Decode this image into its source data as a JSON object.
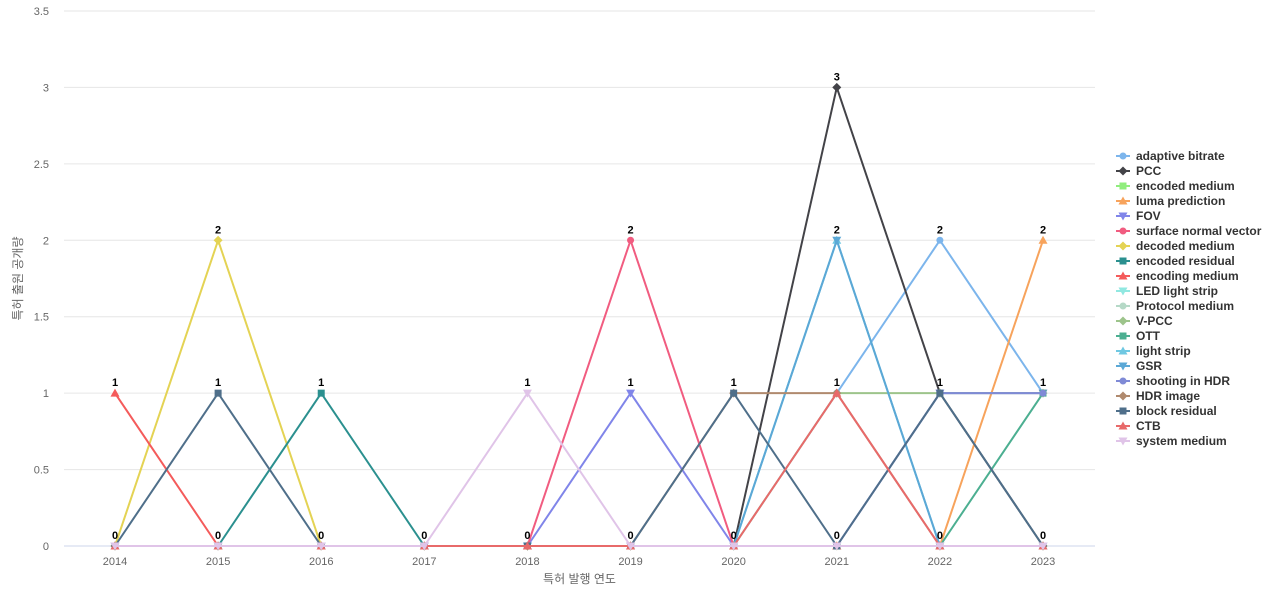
{
  "chart_data": {
    "type": "line",
    "title": "",
    "xlabel": "특허 발행 연도",
    "ylabel": "특허 출원 공개량",
    "x": [
      "2014",
      "2015",
      "2016",
      "2017",
      "2018",
      "2019",
      "2020",
      "2021",
      "2022",
      "2023"
    ],
    "ylim": [
      0,
      3.5
    ],
    "yticks": [
      "0",
      "0.5",
      "1",
      "1.5",
      "2",
      "2.5",
      "3",
      "3.5"
    ],
    "grid": true,
    "legend_position": "right",
    "series": [
      {
        "name": "adaptive bitrate",
        "color": "#7cb5ec",
        "marker": "circle",
        "values": [
          0,
          0,
          0,
          0,
          0,
          0,
          0,
          1,
          2,
          1
        ]
      },
      {
        "name": "PCC",
        "color": "#434348",
        "marker": "diamond",
        "values": [
          0,
          0,
          0,
          0,
          0,
          0,
          0,
          3,
          1,
          0
        ]
      },
      {
        "name": "encoded medium",
        "color": "#90ed7d",
        "marker": "square",
        "values": [
          0,
          0,
          0,
          0,
          0,
          0,
          0,
          0,
          0,
          0
        ]
      },
      {
        "name": "luma prediction",
        "color": "#f7a35c",
        "marker": "triangle",
        "values": [
          0,
          0,
          0,
          0,
          0,
          0,
          0,
          0,
          0,
          2
        ]
      },
      {
        "name": "FOV",
        "color": "#8085e9",
        "marker": "triangle-down",
        "values": [
          0,
          0,
          0,
          0,
          0,
          1,
          0,
          0,
          1,
          1
        ]
      },
      {
        "name": "surface normal vector",
        "color": "#f15c80",
        "marker": "circle",
        "values": [
          0,
          0,
          0,
          0,
          0,
          2,
          0,
          0,
          0,
          0
        ]
      },
      {
        "name": "decoded medium",
        "color": "#e4d354",
        "marker": "diamond",
        "values": [
          0,
          2,
          0,
          0,
          0,
          0,
          0,
          0,
          0,
          0
        ]
      },
      {
        "name": "encoded residual",
        "color": "#2b908f",
        "marker": "square",
        "values": [
          0,
          0,
          1,
          0,
          0,
          0,
          0,
          0,
          0,
          0
        ]
      },
      {
        "name": "encoding medium",
        "color": "#f45b5b",
        "marker": "triangle",
        "values": [
          1,
          0,
          0,
          0,
          0,
          0,
          0,
          0,
          0,
          0
        ]
      },
      {
        "name": "LED light strip",
        "color": "#91e8e1",
        "marker": "triangle-down",
        "values": [
          0,
          0,
          0,
          0,
          0,
          0,
          0,
          0,
          0,
          0
        ]
      },
      {
        "name": "Protocol medium",
        "color": "#b5d9c7",
        "marker": "circle",
        "values": [
          0,
          0,
          0,
          0,
          0,
          0,
          0,
          0,
          0,
          0
        ]
      },
      {
        "name": "V-PCC",
        "color": "#9dc48b",
        "marker": "diamond",
        "values": [
          0,
          0,
          0,
          0,
          0,
          0,
          0,
          1,
          1,
          1
        ]
      },
      {
        "name": "OTT",
        "color": "#4caf91",
        "marker": "square",
        "values": [
          0,
          0,
          0,
          0,
          0,
          0,
          0,
          0,
          0,
          1
        ]
      },
      {
        "name": "light strip",
        "color": "#6fc8e2",
        "marker": "triangle",
        "values": [
          0,
          0,
          0,
          0,
          0,
          0,
          0,
          2,
          0,
          0
        ]
      },
      {
        "name": "GSR",
        "color": "#5ba8d6",
        "marker": "triangle-down",
        "values": [
          0,
          0,
          0,
          0,
          0,
          0,
          0,
          2,
          0,
          0
        ]
      },
      {
        "name": "shooting in HDR",
        "color": "#7f8ad6",
        "marker": "circle",
        "values": [
          0,
          0,
          0,
          0,
          0,
          0,
          0,
          0,
          1,
          1
        ]
      },
      {
        "name": "HDR image",
        "color": "#b08a6e",
        "marker": "diamond",
        "values": [
          0,
          0,
          0,
          0,
          0,
          0,
          1,
          1,
          0,
          0
        ]
      },
      {
        "name": "block residual",
        "color": "#4f6f8a",
        "marker": "square",
        "values": [
          0,
          1,
          0,
          0,
          0,
          0,
          1,
          0,
          1,
          0
        ]
      },
      {
        "name": "CTB",
        "color": "#e86a6a",
        "marker": "triangle",
        "values": [
          0,
          0,
          0,
          0,
          0,
          0,
          0,
          1,
          0,
          0
        ]
      },
      {
        "name": "system medium",
        "color": "#e0c4e8",
        "marker": "triangle-down",
        "values": [
          0,
          0,
          0,
          0,
          1,
          0,
          0,
          0,
          0,
          0
        ]
      }
    ],
    "data_labels": [
      {
        "x": "2014",
        "value": 1
      },
      {
        "x": "2014",
        "value": 0
      },
      {
        "x": "2015",
        "value": 2
      },
      {
        "x": "2015",
        "value": 1
      },
      {
        "x": "2015",
        "value": 0
      },
      {
        "x": "2016",
        "value": 1
      },
      {
        "x": "2016",
        "value": 0
      },
      {
        "x": "2017",
        "value": 0
      },
      {
        "x": "2018",
        "value": 1
      },
      {
        "x": "2018",
        "value": 0
      },
      {
        "x": "2019",
        "value": 2
      },
      {
        "x": "2019",
        "value": 1
      },
      {
        "x": "2019",
        "value": 0
      },
      {
        "x": "2020",
        "value": 1
      },
      {
        "x": "2020",
        "value": 0
      },
      {
        "x": "2021",
        "value": 3
      },
      {
        "x": "2021",
        "value": 2
      },
      {
        "x": "2021",
        "value": 1
      },
      {
        "x": "2021",
        "value": 0
      },
      {
        "x": "2022",
        "value": 2
      },
      {
        "x": "2022",
        "value": 1
      },
      {
        "x": "2022",
        "value": 0
      },
      {
        "x": "2023",
        "value": 2
      },
      {
        "x": "2023",
        "value": 1
      },
      {
        "x": "2023",
        "value": 0
      }
    ]
  }
}
